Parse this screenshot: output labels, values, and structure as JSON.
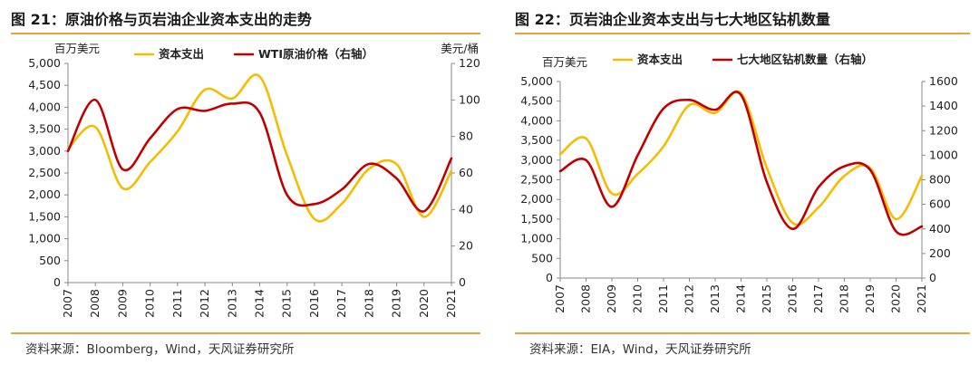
{
  "chart_data": [
    {
      "type": "line",
      "figure_title": "图 21：原油价格与页岩油企业资本支出的走势",
      "source": "资料来源：Bloomberg，Wind，天风证券研究所",
      "left_unit": "百万美元",
      "right_unit": "美元/桶",
      "categories": [
        "2007",
        "2008",
        "2009",
        "2010",
        "2011",
        "2012",
        "2013",
        "2014",
        "2015",
        "2016",
        "2017",
        "2018",
        "2019",
        "2020",
        "2021"
      ],
      "ylim": [
        0,
        5000
      ],
      "y_ticks": [
        0,
        500,
        1000,
        1500,
        2000,
        2500,
        3000,
        3500,
        4000,
        4500,
        5000
      ],
      "y_tick_labels": [
        "0",
        "500",
        "1,000",
        "1,500",
        "2,000",
        "2,500",
        "3,000",
        "3,500",
        "4,000",
        "4,500",
        "5,000"
      ],
      "y2lim": [
        0,
        120
      ],
      "y2_ticks": [
        0,
        20,
        40,
        60,
        80,
        100,
        120
      ],
      "y2_tick_labels": [
        "0",
        "20",
        "40",
        "60",
        "80",
        "100",
        "120"
      ],
      "series": [
        {
          "name": "资本支出",
          "axis": "left",
          "color": "#F5BC00",
          "values": [
            3050,
            3550,
            2150,
            2750,
            3450,
            4400,
            4200,
            4700,
            2900,
            1450,
            1800,
            2600,
            2700,
            1500,
            2550
          ]
        },
        {
          "name": "WTI原油价格（右轴）",
          "axis": "right",
          "color": "#C00000",
          "values": [
            72,
            100,
            62,
            79,
            95,
            94,
            98,
            93,
            48,
            43,
            51,
            65,
            57,
            39,
            68
          ]
        }
      ]
    },
    {
      "type": "line",
      "figure_title": "图 22：页岩油企业资本支出与七大地区钻机数量",
      "source": "资料来源：EIA，Wind，天风证券研究所",
      "left_unit": "百万美元",
      "right_unit": "",
      "categories": [
        "2007",
        "2008",
        "2009",
        "2010",
        "2011",
        "2012",
        "2013",
        "2014",
        "2015",
        "2016",
        "2017",
        "2018",
        "2019",
        "2020",
        "2021"
      ],
      "ylim": [
        0,
        5000
      ],
      "y_ticks": [
        0,
        500,
        1000,
        1500,
        2000,
        2500,
        3000,
        3500,
        4000,
        4500,
        5000
      ],
      "y_tick_labels": [
        "0",
        "500",
        "1,000",
        "1,500",
        "2,000",
        "2,500",
        "3,000",
        "3,500",
        "4,000",
        "4,500",
        "5,000"
      ],
      "y2lim": [
        0,
        1600
      ],
      "y2_ticks": [
        0,
        200,
        400,
        600,
        800,
        1000,
        1200,
        1400,
        1600
      ],
      "y2_tick_labels": [
        "0",
        "200",
        "400",
        "600",
        "800",
        "1000",
        "1200",
        "1400",
        "1600"
      ],
      "series": [
        {
          "name": "资本支出",
          "axis": "left",
          "color": "#F5BC00",
          "values": [
            3150,
            3550,
            2150,
            2650,
            3350,
            4400,
            4200,
            4700,
            2800,
            1400,
            1800,
            2600,
            2800,
            1500,
            2600
          ]
        },
        {
          "name": "七大地区钻机数量（右轴）",
          "axis": "right",
          "color": "#C00000",
          "values": [
            870,
            960,
            580,
            1000,
            1380,
            1450,
            1370,
            1490,
            780,
            400,
            740,
            910,
            880,
            380,
            420
          ]
        }
      ]
    }
  ]
}
